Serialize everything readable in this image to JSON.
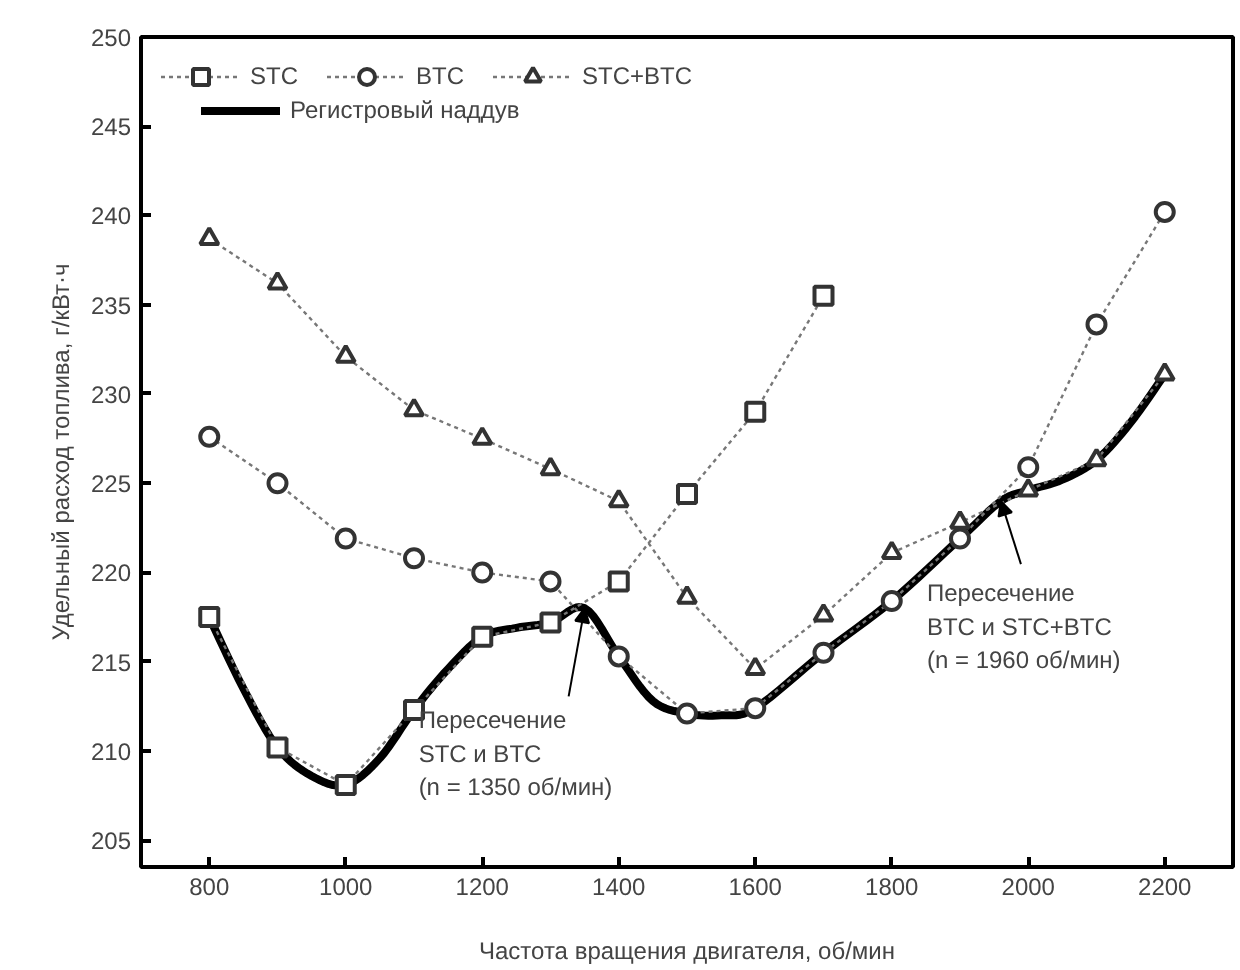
{
  "chart_data": {
    "type": "line",
    "xlabel": "Частота вращения двигателя, об/мин",
    "ylabel": "Удельный расход топлива, г/кВт·ч",
    "xlim": [
      700,
      2300
    ],
    "ylim": [
      203.5,
      250
    ],
    "xticks": [
      800,
      1000,
      1200,
      1400,
      1600,
      1800,
      2000,
      2200
    ],
    "yticks": [
      205,
      210,
      215,
      220,
      225,
      230,
      235,
      240,
      245,
      250
    ],
    "grid": false,
    "legend": "top left",
    "series": [
      {
        "name": "STC",
        "color": "#333333",
        "marker": "square",
        "line_style": "dotted",
        "x": [
          800,
          900,
          1000,
          1100,
          1200,
          1300,
          1400,
          1500,
          1600,
          1700
        ],
        "values": [
          217.5,
          210.2,
          208.1,
          212.3,
          216.4,
          217.2,
          219.5,
          224.4,
          229,
          235.5
        ]
      },
      {
        "name": "BTC",
        "color": "#333333",
        "marker": "circle",
        "line_style": "dotted",
        "x": [
          800,
          900,
          1000,
          1100,
          1200,
          1300,
          1400,
          1500,
          1600,
          1700,
          1800,
          1900,
          2000,
          2100,
          2200
        ],
        "values": [
          227.6,
          225,
          221.9,
          220.8,
          220,
          219.5,
          215.3,
          212.1,
          212.4,
          215.5,
          218.4,
          221.9,
          225.9,
          233.9,
          240.2
        ]
      },
      {
        "name": "STC+BTC",
        "color": "#333333",
        "marker": "triangle",
        "line_style": "dotted",
        "x": [
          800,
          900,
          1000,
          1100,
          1200,
          1300,
          1400,
          1500,
          1600,
          1700,
          1800,
          1900,
          2000,
          2100,
          2200
        ],
        "values": [
          238.7,
          236.2,
          232.1,
          229.1,
          227.5,
          225.8,
          224,
          218.6,
          214.6,
          217.6,
          221.1,
          222.8,
          224.6,
          226.3,
          231.1
        ]
      },
      {
        "name": "Регистровый наддув",
        "color": "#000000",
        "marker": "none",
        "line_style": "solid",
        "x": [
          800,
          850,
          900,
          950,
          1000,
          1050,
          1100,
          1150,
          1200,
          1250,
          1300,
          1350,
          1400,
          1450,
          1500,
          1550,
          1600,
          1700,
          1800,
          1900,
          1960,
          2000,
          2050,
          2100,
          2150,
          2200
        ],
        "values": [
          217.5,
          213.5,
          210.2,
          208.6,
          208.1,
          209.6,
          212.3,
          214.6,
          216.4,
          216.9,
          217.2,
          218,
          215.3,
          212.8,
          212.1,
          212,
          212.4,
          215.5,
          218.4,
          221.9,
          224,
          224.6,
          225.2,
          226.3,
          228.4,
          231.1
        ]
      }
    ],
    "annotations": [
      {
        "text": "Пересечение\nSTC и BTC\n(n = 1350 об/мин)",
        "x": 1350,
        "y": 218
      },
      {
        "text": "Пересечение\nBTC и STC+BTC\n(n = 1960 об/мин)",
        "x": 1960,
        "y": 224
      }
    ]
  }
}
